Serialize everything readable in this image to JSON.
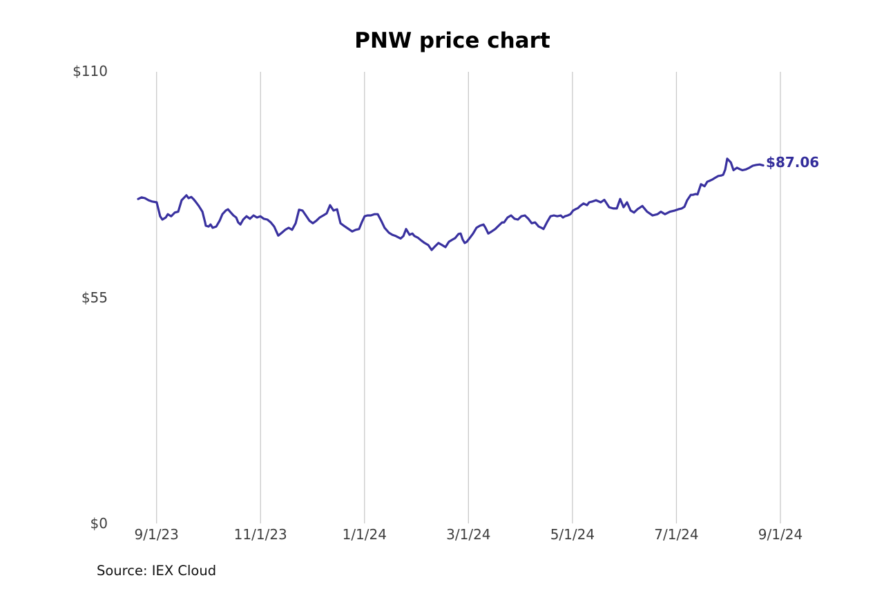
{
  "title": "PNW price chart",
  "source_note": "Source: IEX Cloud",
  "last_price_label": "$87.06",
  "colors": {
    "line": "#39319f",
    "last_label_text": "#332d9b",
    "grid": "#c9c9c9",
    "tick_text": "#3d3d3d",
    "title_text": "#000000",
    "source_text": "#111111",
    "background": "#ffffff"
  },
  "chart_data": {
    "type": "line",
    "title": "PNW price chart",
    "xlabel": "",
    "ylabel": "",
    "legend": "none",
    "grid": "vertical-only",
    "ylim": [
      0,
      110
    ],
    "y_ticks": [
      {
        "label": "$110",
        "value": 110
      },
      {
        "label": "$55",
        "value": 55
      },
      {
        "label": "$0",
        "value": 0
      }
    ],
    "x_unit": "days-from-9/1/23",
    "xlim": [
      -11,
      366
    ],
    "x_ticks": [
      {
        "label": "9/1/23",
        "day": 0
      },
      {
        "label": "11/1/23",
        "day": 61
      },
      {
        "label": "1/1/24",
        "day": 122
      },
      {
        "label": "3/1/24",
        "day": 183
      },
      {
        "label": "5/1/24",
        "day": 244
      },
      {
        "label": "7/1/24",
        "day": 305
      },
      {
        "label": "9/1/24",
        "day": 366
      }
    ],
    "last_value": 87.06,
    "series": [
      {
        "name": "PNW",
        "points": [
          [
            -10.8,
            78.9
          ],
          [
            -8.8,
            79.3
          ],
          [
            -6.8,
            79.1
          ],
          [
            -4.7,
            78.6
          ],
          [
            -2.7,
            78.3
          ],
          [
            0.1,
            78.1
          ],
          [
            2.1,
            74.7
          ],
          [
            3.4,
            73.9
          ],
          [
            5.4,
            74.4
          ],
          [
            6.6,
            75.2
          ],
          [
            8.6,
            74.7
          ],
          [
            10.7,
            75.6
          ],
          [
            12.7,
            75.8
          ],
          [
            14.7,
            78.6
          ],
          [
            17.5,
            79.8
          ],
          [
            18.8,
            79.1
          ],
          [
            20.4,
            79.4
          ],
          [
            21.6,
            78.9
          ],
          [
            22.8,
            78.3
          ],
          [
            24.8,
            77.2
          ],
          [
            26.9,
            75.8
          ],
          [
            28.5,
            73.2
          ],
          [
            28.9,
            72.4
          ],
          [
            30.5,
            72.2
          ],
          [
            31.7,
            72.7
          ],
          [
            32.9,
            71.9
          ],
          [
            35.0,
            72.2
          ],
          [
            37.0,
            73.6
          ],
          [
            38.6,
            75.2
          ],
          [
            40.6,
            76.1
          ],
          [
            41.9,
            76.4
          ],
          [
            43.1,
            75.8
          ],
          [
            45.1,
            74.9
          ],
          [
            46.7,
            74.4
          ],
          [
            47.9,
            73.2
          ],
          [
            49.2,
            72.7
          ],
          [
            50.8,
            73.9
          ],
          [
            52.8,
            74.7
          ],
          [
            54.8,
            74.1
          ],
          [
            56.9,
            74.9
          ],
          [
            58.9,
            74.4
          ],
          [
            60.9,
            74.7
          ],
          [
            62.9,
            74.1
          ],
          [
            65.0,
            73.9
          ],
          [
            67.0,
            73.2
          ],
          [
            69.0,
            72.2
          ],
          [
            71.4,
            70.0
          ],
          [
            73.5,
            70.7
          ],
          [
            75.5,
            71.4
          ],
          [
            77.5,
            71.9
          ],
          [
            79.5,
            71.4
          ],
          [
            81.6,
            73.0
          ],
          [
            83.6,
            76.3
          ],
          [
            85.6,
            76.1
          ],
          [
            87.6,
            74.9
          ],
          [
            89.7,
            73.6
          ],
          [
            91.7,
            73.0
          ],
          [
            93.7,
            73.6
          ],
          [
            95.7,
            74.4
          ],
          [
            97.8,
            74.9
          ],
          [
            99.8,
            75.4
          ],
          [
            101.8,
            77.4
          ],
          [
            103.8,
            76.1
          ],
          [
            105.9,
            76.4
          ],
          [
            107.9,
            73.0
          ],
          [
            109.9,
            72.4
          ],
          [
            112.0,
            71.8
          ],
          [
            114.8,
            71.0
          ],
          [
            116.8,
            71.4
          ],
          [
            118.8,
            71.6
          ],
          [
            120.4,
            73.2
          ],
          [
            122.1,
            74.7
          ],
          [
            123.7,
            74.9
          ],
          [
            125.7,
            74.9
          ],
          [
            127.8,
            75.2
          ],
          [
            129.8,
            75.2
          ],
          [
            131.8,
            73.6
          ],
          [
            133.8,
            71.9
          ],
          [
            136.3,
            70.7
          ],
          [
            138.3,
            70.2
          ],
          [
            140.3,
            69.9
          ],
          [
            143.2,
            69.3
          ],
          [
            144.8,
            69.9
          ],
          [
            146.4,
            71.6
          ],
          [
            148.4,
            70.2
          ],
          [
            150.1,
            70.5
          ],
          [
            151.3,
            69.9
          ],
          [
            153.3,
            69.5
          ],
          [
            155.3,
            68.8
          ],
          [
            157.3,
            68.2
          ],
          [
            159.4,
            67.7
          ],
          [
            161.4,
            66.5
          ],
          [
            163.4,
            67.4
          ],
          [
            165.4,
            68.2
          ],
          [
            167.5,
            67.7
          ],
          [
            169.5,
            67.2
          ],
          [
            171.5,
            68.5
          ],
          [
            173.5,
            69.0
          ],
          [
            175.2,
            69.4
          ],
          [
            177.2,
            70.4
          ],
          [
            178.4,
            70.5
          ],
          [
            179.6,
            69.0
          ],
          [
            180.8,
            68.2
          ],
          [
            182.0,
            68.5
          ],
          [
            183.7,
            69.4
          ],
          [
            185.7,
            70.5
          ],
          [
            187.7,
            71.9
          ],
          [
            189.7,
            72.4
          ],
          [
            191.8,
            72.7
          ],
          [
            193.0,
            71.9
          ],
          [
            194.6,
            70.5
          ],
          [
            196.6,
            71.0
          ],
          [
            198.7,
            71.6
          ],
          [
            200.7,
            72.4
          ],
          [
            202.7,
            73.2
          ],
          [
            203.9,
            73.2
          ],
          [
            205.9,
            74.4
          ],
          [
            208.0,
            74.9
          ],
          [
            210.0,
            74.1
          ],
          [
            212.0,
            73.9
          ],
          [
            214.0,
            74.7
          ],
          [
            216.1,
            74.9
          ],
          [
            218.1,
            74.1
          ],
          [
            220.1,
            73.0
          ],
          [
            222.1,
            73.2
          ],
          [
            224.2,
            72.2
          ],
          [
            225.8,
            71.9
          ],
          [
            227.0,
            71.6
          ],
          [
            229.0,
            73.2
          ],
          [
            231.1,
            74.7
          ],
          [
            233.1,
            74.9
          ],
          [
            235.1,
            74.7
          ],
          [
            237.1,
            74.9
          ],
          [
            238.4,
            74.4
          ],
          [
            239.6,
            74.7
          ],
          [
            241.2,
            74.9
          ],
          [
            242.8,
            75.2
          ],
          [
            244.4,
            76.1
          ],
          [
            245.7,
            76.4
          ],
          [
            247.3,
            76.7
          ],
          [
            248.5,
            77.2
          ],
          [
            250.5,
            77.8
          ],
          [
            252.5,
            77.4
          ],
          [
            253.8,
            78.1
          ],
          [
            255.8,
            78.3
          ],
          [
            257.8,
            78.6
          ],
          [
            260.6,
            78.1
          ],
          [
            262.7,
            78.7
          ],
          [
            265.5,
            76.9
          ],
          [
            267.9,
            76.6
          ],
          [
            270.0,
            76.6
          ],
          [
            272.0,
            78.9
          ],
          [
            274.0,
            76.9
          ],
          [
            276.0,
            78.1
          ],
          [
            278.1,
            76.1
          ],
          [
            280.1,
            75.6
          ],
          [
            282.1,
            76.4
          ],
          [
            285.0,
            77.2
          ],
          [
            287.8,
            75.8
          ],
          [
            291.0,
            74.9
          ],
          [
            293.9,
            75.2
          ],
          [
            295.9,
            75.8
          ],
          [
            298.3,
            75.2
          ],
          [
            301.2,
            75.8
          ],
          [
            304.0,
            76.1
          ],
          [
            306.1,
            76.4
          ],
          [
            308.1,
            76.6
          ],
          [
            309.7,
            77.0
          ],
          [
            311.3,
            78.6
          ],
          [
            313.4,
            79.9
          ],
          [
            314.6,
            79.9
          ],
          [
            316.2,
            80.1
          ],
          [
            317.4,
            80.0
          ],
          [
            319.4,
            82.5
          ],
          [
            321.5,
            82.0
          ],
          [
            323.1,
            83.1
          ],
          [
            324.3,
            83.3
          ],
          [
            325.9,
            83.6
          ],
          [
            327.5,
            84.0
          ],
          [
            329.6,
            84.5
          ],
          [
            331.2,
            84.6
          ],
          [
            332.4,
            84.8
          ],
          [
            333.6,
            86.0
          ],
          [
            334.8,
            88.7
          ],
          [
            336.0,
            88.2
          ],
          [
            336.9,
            87.8
          ],
          [
            338.5,
            85.9
          ],
          [
            340.5,
            86.5
          ],
          [
            342.5,
            86.1
          ],
          [
            343.7,
            85.9
          ],
          [
            345.8,
            86.1
          ],
          [
            347.8,
            86.5
          ],
          [
            349.8,
            87.0
          ],
          [
            351.9,
            87.2
          ],
          [
            353.9,
            87.3
          ],
          [
            355.9,
            87.06
          ]
        ]
      }
    ]
  }
}
